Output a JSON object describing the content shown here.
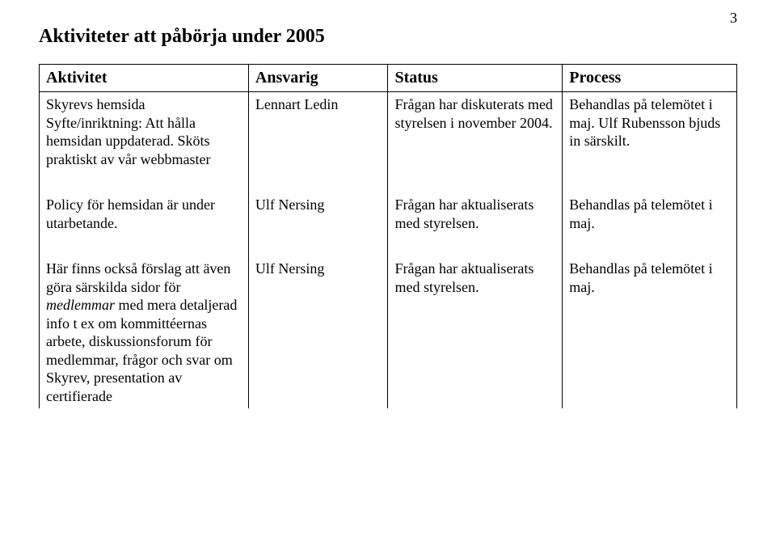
{
  "page_number": "3",
  "heading": "Aktiviteter att påbörja under 2005",
  "table": {
    "headers": {
      "activity": "Aktivitet",
      "responsible": "Ansvarig",
      "status": "Status",
      "process": "Process"
    },
    "rows": [
      {
        "activity_html": "Skyrevs hemsida<br>Syfte/inriktning: Att hålla hemsidan uppdaterad. Sköts praktiskt av vår webbmaster",
        "responsible": "Lennart Ledin",
        "status": "Frågan har diskuterats med styrelsen i november 2004.",
        "process": "Behandlas på telemötet i maj. Ulf Rubensson bjuds in särskilt."
      },
      {
        "activity_html": "Policy för hemsidan är under utarbetande.",
        "responsible": "Ulf Nersing",
        "status": "Frågan har aktualiserats med styrelsen.",
        "process": "Behandlas på telemötet i maj."
      },
      {
        "activity_html": "Här finns också förslag att även göra särskilda sidor för <span class=\"italic\">medlemmar</span> med mera detaljerad info t ex om kommittéernas arbete, diskussionsforum för medlemmar, frågor och svar om Skyrev, presentation av certifierade",
        "responsible": "Ulf Nersing",
        "status": "Frågan har aktualiserats med styrelsen.",
        "process": "Behandlas på telemötet i maj."
      }
    ]
  }
}
